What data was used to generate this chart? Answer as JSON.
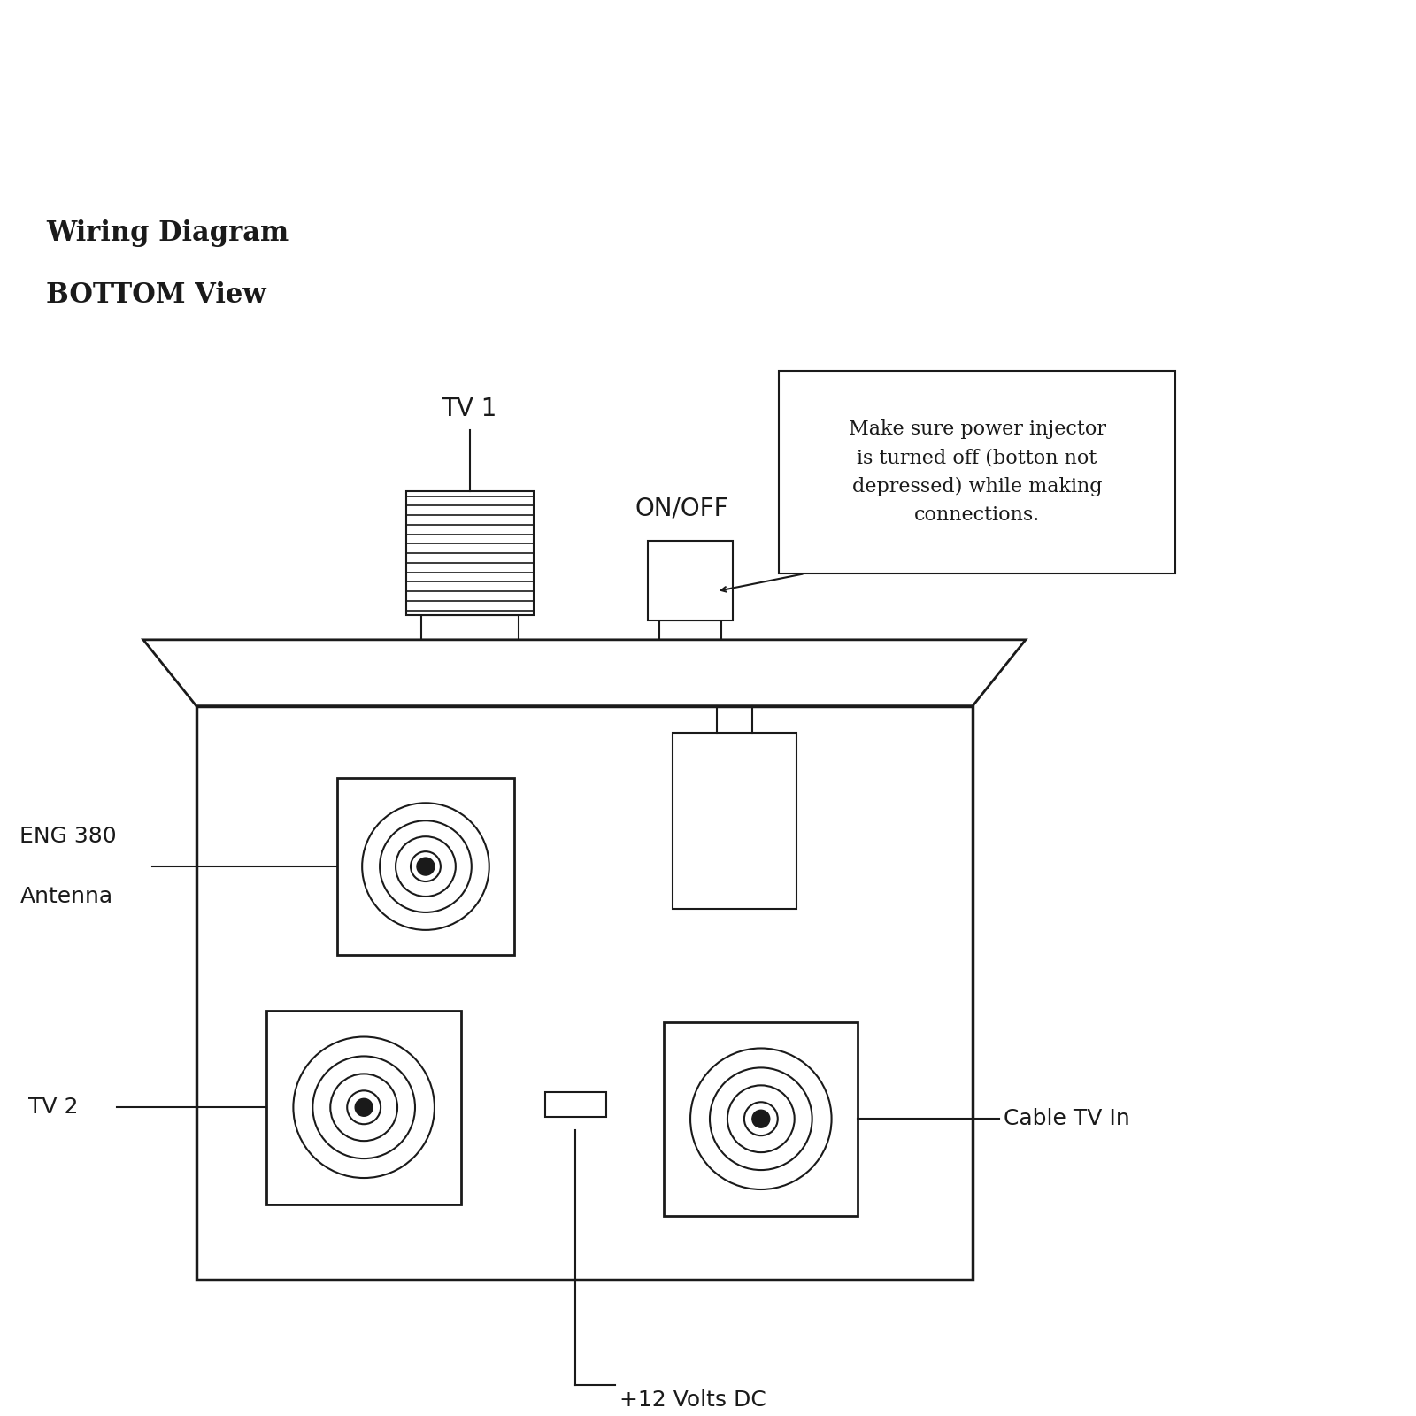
{
  "bg_color": "#ffffff",
  "line_color": "#1a1a1a",
  "title_line1": "Wiring Diagram",
  "title_line2": "BOTTOM View",
  "label_fontsize": 18,
  "note_fontsize": 16,
  "title_fontsize": 20,
  "note_text": "Make sure power injector\nis turned off (botton not\ndepressed) while making\nconnections."
}
